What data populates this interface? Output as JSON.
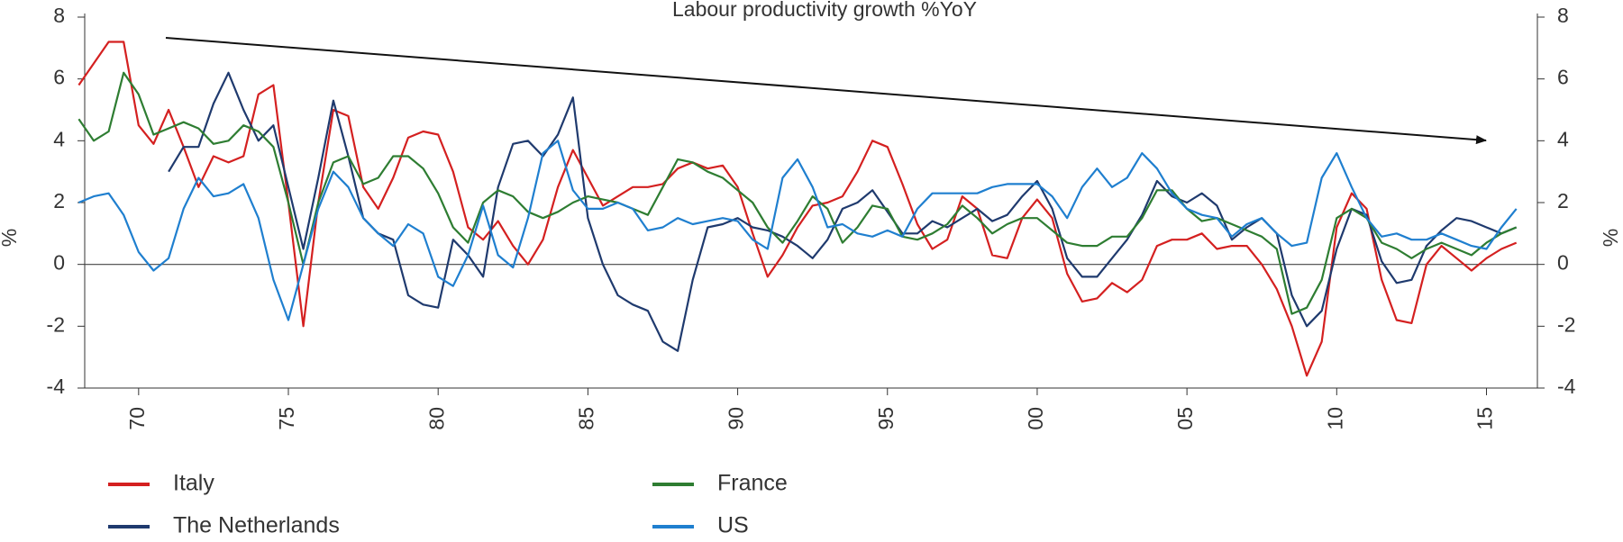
{
  "chart_data": {
    "type": "line",
    "title": "Labour productivity growth %YoY",
    "y_label": "%",
    "y2_label": "%",
    "x": [
      1968,
      1968.5,
      1969,
      1969.5,
      1970,
      1970.5,
      1971,
      1971.5,
      1972,
      1972.5,
      1973,
      1973.5,
      1974,
      1974.5,
      1975,
      1975.5,
      1976,
      1976.5,
      1977,
      1977.5,
      1978,
      1978.5,
      1979,
      1979.5,
      1980,
      1980.5,
      1981,
      1981.5,
      1982,
      1982.5,
      1983,
      1983.5,
      1984,
      1984.5,
      1985,
      1985.5,
      1986,
      1986.5,
      1987,
      1987.5,
      1988,
      1988.5,
      1989,
      1989.5,
      1990,
      1990.5,
      1991,
      1991.5,
      1992,
      1992.5,
      1993,
      1993.5,
      1994,
      1994.5,
      1995,
      1995.5,
      1996,
      1996.5,
      1997,
      1997.5,
      1998,
      1998.5,
      1999,
      1999.5,
      2000,
      2000.5,
      2001,
      2001.5,
      2002,
      2002.5,
      2003,
      2003.5,
      2004,
      2004.5,
      2005,
      2005.5,
      2006,
      2006.5,
      2007,
      2007.5,
      2008,
      2008.5,
      2009,
      2009.5,
      2010,
      2010.5,
      2011,
      2011.5,
      2012,
      2012.5,
      2013,
      2013.5,
      2014,
      2014.5,
      2015,
      2015.5,
      2016
    ],
    "series": [
      {
        "name": "Italy",
        "color": "#d42020",
        "values": [
          5.8,
          6.5,
          7.2,
          7.2,
          4.5,
          3.9,
          5.0,
          3.8,
          2.5,
          3.5,
          3.3,
          3.5,
          5.5,
          5.8,
          2.0,
          -2.0,
          2.0,
          5.0,
          4.8,
          2.5,
          1.8,
          2.8,
          4.1,
          4.3,
          4.2,
          3.0,
          1.2,
          0.8,
          1.4,
          0.6,
          0.0,
          0.8,
          2.5,
          3.7,
          2.8,
          1.9,
          2.2,
          2.5,
          2.5,
          2.6,
          3.1,
          3.3,
          3.1,
          3.2,
          2.5,
          1.0,
          -0.4,
          0.3,
          1.2,
          1.9,
          2.0,
          2.2,
          3.0,
          4.0,
          3.8,
          2.6,
          1.3,
          0.5,
          0.8,
          2.2,
          1.8,
          0.3,
          0.2,
          1.5,
          2.1,
          1.5,
          -0.3,
          -1.2,
          -1.1,
          -0.6,
          -0.9,
          -0.5,
          0.6,
          0.8,
          0.8,
          1.0,
          0.5,
          0.6,
          0.6,
          0.0,
          -0.8,
          -2.0,
          -3.6,
          -2.5,
          1.2,
          2.3,
          1.8,
          -0.5,
          -1.8,
          -1.9,
          0.0,
          0.6,
          0.2,
          -0.2,
          0.2,
          0.5,
          0.7
        ]
      },
      {
        "name": "The Netherlands",
        "color": "#1f3a6e",
        "values": [
          null,
          null,
          null,
          null,
          null,
          null,
          3.0,
          3.8,
          3.8,
          5.2,
          6.2,
          5.0,
          4.0,
          4.5,
          2.5,
          0.5,
          2.8,
          5.3,
          3.5,
          1.5,
          1.0,
          0.8,
          -1.0,
          -1.3,
          -1.4,
          0.8,
          0.3,
          -0.4,
          2.5,
          3.9,
          4.0,
          3.5,
          4.2,
          5.4,
          1.5,
          0.0,
          -1.0,
          -1.3,
          -1.5,
          -2.5,
          -2.8,
          -0.5,
          1.2,
          1.3,
          1.5,
          1.2,
          1.1,
          0.9,
          0.6,
          0.2,
          0.8,
          1.8,
          2.0,
          2.4,
          1.7,
          1.0,
          1.0,
          1.4,
          1.2,
          1.5,
          1.8,
          1.4,
          1.6,
          2.2,
          2.7,
          1.8,
          0.2,
          -0.4,
          -0.4,
          0.2,
          0.8,
          1.6,
          2.7,
          2.2,
          2.0,
          2.3,
          1.9,
          0.8,
          1.2,
          1.5,
          1.0,
          -1.0,
          -2.0,
          -1.5,
          0.5,
          1.8,
          1.6,
          0.1,
          -0.6,
          -0.5,
          0.6,
          1.1,
          1.5,
          1.4,
          1.2,
          1.0,
          1.2
        ]
      },
      {
        "name": "France",
        "color": "#2e7d32",
        "values": [
          4.7,
          4.0,
          4.3,
          6.2,
          5.5,
          4.2,
          4.4,
          4.6,
          4.4,
          3.9,
          4.0,
          4.5,
          4.3,
          3.8,
          2.0,
          0.0,
          2.0,
          3.3,
          3.5,
          2.6,
          2.8,
          3.5,
          3.5,
          3.1,
          2.3,
          1.2,
          0.7,
          2.0,
          2.4,
          2.2,
          1.7,
          1.5,
          1.7,
          2.0,
          2.2,
          2.1,
          2.0,
          1.8,
          1.6,
          2.5,
          3.4,
          3.3,
          3.0,
          2.8,
          2.4,
          2.0,
          1.2,
          0.7,
          1.4,
          2.2,
          1.8,
          0.7,
          1.2,
          1.9,
          1.8,
          0.9,
          0.8,
          1.0,
          1.3,
          1.9,
          1.5,
          1.0,
          1.3,
          1.5,
          1.5,
          1.1,
          0.7,
          0.6,
          0.6,
          0.9,
          0.9,
          1.5,
          2.4,
          2.4,
          1.8,
          1.4,
          1.5,
          1.3,
          1.1,
          0.9,
          0.5,
          -1.6,
          -1.4,
          -0.5,
          1.5,
          1.8,
          1.5,
          0.7,
          0.5,
          0.2,
          0.5,
          0.7,
          0.5,
          0.3,
          0.7,
          1.0,
          1.2
        ]
      },
      {
        "name": "US",
        "color": "#1f7fcf",
        "values": [
          2.0,
          2.2,
          2.3,
          1.6,
          0.4,
          -0.2,
          0.2,
          1.8,
          2.8,
          2.2,
          2.3,
          2.6,
          1.5,
          -0.5,
          -1.8,
          0.0,
          1.8,
          3.0,
          2.5,
          1.5,
          1.0,
          0.6,
          1.3,
          1.0,
          -0.4,
          -0.7,
          0.3,
          1.9,
          0.3,
          -0.1,
          1.5,
          3.6,
          4.0,
          2.4,
          1.8,
          1.8,
          2.0,
          1.8,
          1.1,
          1.2,
          1.5,
          1.3,
          1.4,
          1.5,
          1.4,
          0.8,
          0.5,
          2.8,
          3.4,
          2.5,
          1.2,
          1.3,
          1.0,
          0.9,
          1.1,
          0.9,
          1.8,
          2.3,
          2.3,
          2.3,
          2.3,
          2.5,
          2.6,
          2.6,
          2.6,
          2.2,
          1.5,
          2.5,
          3.1,
          2.5,
          2.8,
          3.6,
          3.1,
          2.3,
          1.8,
          1.6,
          1.5,
          0.9,
          1.3,
          1.5,
          1.0,
          0.6,
          0.7,
          2.8,
          3.6,
          2.5,
          1.5,
          0.9,
          1.0,
          0.8,
          0.8,
          1.0,
          0.8,
          0.6,
          0.5,
          1.2,
          1.8
        ]
      }
    ],
    "xlim": [
      1968.2,
      2016.7
    ],
    "xticks": [
      {
        "value": 1970,
        "label": "70"
      },
      {
        "value": 1975,
        "label": "75"
      },
      {
        "value": 1980,
        "label": "80"
      },
      {
        "value": 1985,
        "label": "85"
      },
      {
        "value": 1990,
        "label": "90"
      },
      {
        "value": 1995,
        "label": "95"
      },
      {
        "value": 2000,
        "label": "00"
      },
      {
        "value": 2005,
        "label": "05"
      },
      {
        "value": 2010,
        "label": "10"
      },
      {
        "value": 2015,
        "label": "15"
      }
    ],
    "ylim": [
      -4,
      8
    ],
    "yticks": [
      -4,
      -2,
      0,
      2,
      4,
      6,
      8
    ],
    "y2lim": [
      -4,
      8
    ],
    "y2ticks": [
      -4,
      -2,
      0,
      2,
      4,
      6,
      8
    ]
  }
}
